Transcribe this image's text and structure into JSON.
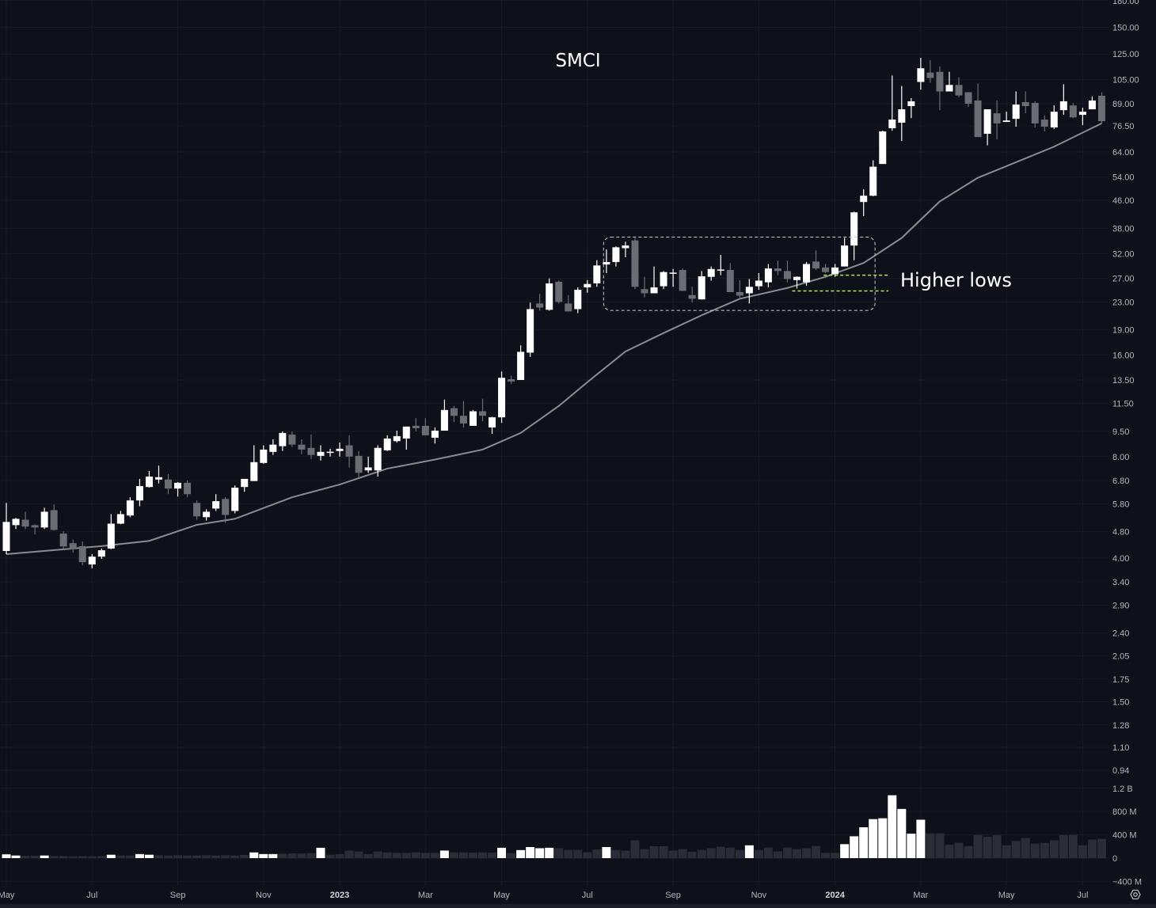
{
  "chart_data": {
    "type": "candlestick",
    "title": "SMCI",
    "price_scale": "log",
    "colors": {
      "background": "#0f111a",
      "up": "#ffffff",
      "down": "#6b6d73",
      "ma": "#8a8c92",
      "volume_normal": "#2a2c36",
      "volume_highlight": "#ffffff",
      "box": "#c8cad0",
      "level_lines": "#b5e853",
      "axis_text": "#b2b5be"
    },
    "y_ticks": [
      {
        "v": 180,
        "label": "180.00"
      },
      {
        "v": 150,
        "label": "150.00"
      },
      {
        "v": 125,
        "label": "125.00"
      },
      {
        "v": 105,
        "label": "105.00"
      },
      {
        "v": 89,
        "label": "89.00"
      },
      {
        "v": 76.5,
        "label": "76.50"
      },
      {
        "v": 64,
        "label": "64.00"
      },
      {
        "v": 54,
        "label": "54.00"
      },
      {
        "v": 46,
        "label": "46.00"
      },
      {
        "v": 38,
        "label": "38.00"
      },
      {
        "v": 32,
        "label": "32.00"
      },
      {
        "v": 27,
        "label": "27.00"
      },
      {
        "v": 23,
        "label": "23.00"
      },
      {
        "v": 19,
        "label": "19.00"
      },
      {
        "v": 16,
        "label": "16.00"
      },
      {
        "v": 13.5,
        "label": "13.50"
      },
      {
        "v": 11.5,
        "label": "11.50"
      },
      {
        "v": 9.5,
        "label": "9.50"
      },
      {
        "v": 8,
        "label": "8.00"
      },
      {
        "v": 6.8,
        "label": "6.80"
      },
      {
        "v": 5.8,
        "label": "5.80"
      },
      {
        "v": 4.8,
        "label": "4.80"
      },
      {
        "v": 4,
        "label": "4.00"
      },
      {
        "v": 3.4,
        "label": "3.40"
      },
      {
        "v": 2.9,
        "label": "2.90"
      },
      {
        "v": 2.4,
        "label": "2.40"
      },
      {
        "v": 2.05,
        "label": "2.05"
      },
      {
        "v": 1.75,
        "label": "1.75"
      },
      {
        "v": 1.5,
        "label": "1.50"
      },
      {
        "v": 1.28,
        "label": "1.28"
      },
      {
        "v": 1.1,
        "label": "1.10"
      },
      {
        "v": 0.94,
        "label": "0.94"
      }
    ],
    "volume_ticks": [
      {
        "v": 1200,
        "label": "1.2 B"
      },
      {
        "v": 800,
        "label": "800 M"
      },
      {
        "v": 400,
        "label": "400 M"
      },
      {
        "v": 0,
        "label": "0"
      },
      {
        "v": -400,
        "label": "−400 M"
      }
    ],
    "x_ticks": [
      {
        "bar": 0,
        "label": "May",
        "bold": false
      },
      {
        "bar": 9,
        "label": "Jul",
        "bold": false
      },
      {
        "bar": 18,
        "label": "Sep",
        "bold": false
      },
      {
        "bar": 27,
        "label": "Nov",
        "bold": false
      },
      {
        "bar": 35,
        "label": "2023",
        "bold": true
      },
      {
        "bar": 44,
        "label": "Mar",
        "bold": false
      },
      {
        "bar": 52,
        "label": "May",
        "bold": false
      },
      {
        "bar": 61,
        "label": "Jul",
        "bold": false
      },
      {
        "bar": 70,
        "label": "Sep",
        "bold": false
      },
      {
        "bar": 79,
        "label": "Nov",
        "bold": false
      },
      {
        "bar": 87,
        "label": "2024",
        "bold": true
      },
      {
        "bar": 96,
        "label": "Mar",
        "bold": false
      },
      {
        "bar": 105,
        "label": "May",
        "bold": false
      },
      {
        "bar": 113,
        "label": "Jul",
        "bold": false
      }
    ],
    "ohlc": [
      [
        4.2,
        5.83,
        4.11,
        5.12
      ],
      [
        5.01,
        5.26,
        4.88,
        5.23
      ],
      [
        5.2,
        5.49,
        4.88,
        4.96
      ],
      [
        5.01,
        5.04,
        4.7,
        4.93
      ],
      [
        4.93,
        5.64,
        4.88,
        5.49
      ],
      [
        5.55,
        5.77,
        4.83,
        4.85
      ],
      [
        4.73,
        4.8,
        4.26,
        4.33
      ],
      [
        4.43,
        4.54,
        4.15,
        4.25
      ],
      [
        4.34,
        4.48,
        3.81,
        3.89
      ],
      [
        3.83,
        4.11,
        3.73,
        4.04
      ],
      [
        4.04,
        4.27,
        3.98,
        4.22
      ],
      [
        4.27,
        5.4,
        4.25,
        5.06
      ],
      [
        5.06,
        5.52,
        5.04,
        5.4
      ],
      [
        5.35,
        6.06,
        5.29,
        5.93
      ],
      [
        5.93,
        6.87,
        5.7,
        6.54
      ],
      [
        6.5,
        7.25,
        6.47,
        6.98
      ],
      [
        6.84,
        7.52,
        6.66,
        6.95
      ],
      [
        6.84,
        7.1,
        6.19,
        6.43
      ],
      [
        6.43,
        6.72,
        6.09,
        6.69
      ],
      [
        6.69,
        6.8,
        6.06,
        6.19
      ],
      [
        5.83,
        5.93,
        5.2,
        5.32
      ],
      [
        5.29,
        5.58,
        5.17,
        5.49
      ],
      [
        5.61,
        6.19,
        5.52,
        5.9
      ],
      [
        5.99,
        6.06,
        5.09,
        5.37
      ],
      [
        5.52,
        6.57,
        5.43,
        6.47
      ],
      [
        6.5,
        6.87,
        6.29,
        6.87
      ],
      [
        6.77,
        8.64,
        6.77,
        7.7
      ],
      [
        7.66,
        8.64,
        7.62,
        8.39
      ],
      [
        8.26,
        9.0,
        8.09,
        8.68
      ],
      [
        8.59,
        9.5,
        8.31,
        9.4
      ],
      [
        9.3,
        9.5,
        8.54,
        8.68
      ],
      [
        8.68,
        9.0,
        8.13,
        8.39
      ],
      [
        8.49,
        9.3,
        7.87,
        8.09
      ],
      [
        8.04,
        8.64,
        7.79,
        8.26
      ],
      [
        8.24,
        8.44,
        8.0,
        8.27
      ],
      [
        8.31,
        8.8,
        8.0,
        8.44
      ],
      [
        8.64,
        9.25,
        7.43,
        8.0
      ],
      [
        8.04,
        8.31,
        6.91,
        7.16
      ],
      [
        7.28,
        8.0,
        7.16,
        7.43
      ],
      [
        7.28,
        8.64,
        6.98,
        8.49
      ],
      [
        8.35,
        9.25,
        8.31,
        9.05
      ],
      [
        8.89,
        9.55,
        8.8,
        9.2
      ],
      [
        9.05,
        9.82,
        8.39,
        9.82
      ],
      [
        9.87,
        10.4,
        9.5,
        9.71
      ],
      [
        9.87,
        10.4,
        9.25,
        9.25
      ],
      [
        9.1,
        9.76,
        8.75,
        9.55
      ],
      [
        9.55,
        11.8,
        9.55,
        11.0
      ],
      [
        11.13,
        11.31,
        10.13,
        10.57
      ],
      [
        10.57,
        11.69,
        9.76,
        10.03
      ],
      [
        9.87,
        11.0,
        9.87,
        10.9
      ],
      [
        10.9,
        11.88,
        10.18,
        10.57
      ],
      [
        9.76,
        10.5,
        9.35,
        10.46
      ],
      [
        10.46,
        14.3,
        10.07,
        13.7
      ],
      [
        13.57,
        13.9,
        13.14,
        13.36
      ],
      [
        13.5,
        17.1,
        13.5,
        16.36
      ],
      [
        16.27,
        22.9,
        15.8,
        21.9
      ],
      [
        22.75,
        24.3,
        21.67,
        22.14
      ],
      [
        21.8,
        27.0,
        21.67,
        26.1
      ],
      [
        26.4,
        26.6,
        22.75,
        23.0
      ],
      [
        22.75,
        24.1,
        21.55,
        21.55
      ],
      [
        21.9,
        25.4,
        21.3,
        25.0
      ],
      [
        25.4,
        26.7,
        24.5,
        26.0
      ],
      [
        26.1,
        30.6,
        25.5,
        29.5
      ],
      [
        29.7,
        32.9,
        28.0,
        30.2
      ],
      [
        30.2,
        33.6,
        29.3,
        33.4
      ],
      [
        33.2,
        34.7,
        31.2,
        33.8
      ],
      [
        35.0,
        35.6,
        25.1,
        25.5
      ],
      [
        25.1,
        27.3,
        23.7,
        24.4
      ],
      [
        24.4,
        29.3,
        24.4,
        25.4
      ],
      [
        25.6,
        28.4,
        25.1,
        28.2
      ],
      [
        27.9,
        28.8,
        25.5,
        28.1
      ],
      [
        28.6,
        28.9,
        24.8,
        24.8
      ],
      [
        24.1,
        25.5,
        22.9,
        23.5
      ],
      [
        23.4,
        28.4,
        23.4,
        27.4
      ],
      [
        27.3,
        29.3,
        26.6,
        28.8
      ],
      [
        28.5,
        31.7,
        27.6,
        28.7
      ],
      [
        28.6,
        30.0,
        24.6,
        24.6
      ],
      [
        24.6,
        26.7,
        23.5,
        24.0
      ],
      [
        24.4,
        26.9,
        22.75,
        25.5
      ],
      [
        25.6,
        28.0,
        25.0,
        26.6
      ],
      [
        26.3,
        29.8,
        25.4,
        28.9
      ],
      [
        28.9,
        30.5,
        27.6,
        28.4
      ],
      [
        28.4,
        30.5,
        26.3,
        26.9
      ],
      [
        26.7,
        27.4,
        25.2,
        27.3
      ],
      [
        26.3,
        30.2,
        25.7,
        29.8
      ],
      [
        30.3,
        32.7,
        28.6,
        28.9
      ],
      [
        29.1,
        29.8,
        28.0,
        28.2
      ],
      [
        27.8,
        29.8,
        27.3,
        29.1
      ],
      [
        29.3,
        35.6,
        29.3,
        33.8
      ],
      [
        33.8,
        42.6,
        30.6,
        42.4
      ],
      [
        45.5,
        49.6,
        41.3,
        47.5
      ],
      [
        47.5,
        60.5,
        47.3,
        57.9
      ],
      [
        59.0,
        74.1,
        59.0,
        73.7
      ],
      [
        75.3,
        107.9,
        74.1,
        79.9
      ],
      [
        78.2,
        100.5,
        69.0,
        85.7
      ],
      [
        87.6,
        92.5,
        80.7,
        90.5
      ],
      [
        103.3,
        121.7,
        98.0,
        113.4
      ],
      [
        110.1,
        119.8,
        102.7,
        106.1
      ],
      [
        110.7,
        114.8,
        85.2,
        96.8
      ],
      [
        96.8,
        110.7,
        96.8,
        101.2
      ],
      [
        101.2,
        106.7,
        93.1,
        94.2
      ],
      [
        96.3,
        96.3,
        87.1,
        89.0
      ],
      [
        91.0,
        102.2,
        70.9,
        70.9
      ],
      [
        72.5,
        85.7,
        67.0,
        85.7
      ],
      [
        83.4,
        91.0,
        69.8,
        77.8
      ],
      [
        78.6,
        84.3,
        78.6,
        79.4
      ],
      [
        80.3,
        96.8,
        76.1,
        88.5
      ],
      [
        90.0,
        96.8,
        83.4,
        87.6
      ],
      [
        89.5,
        90.5,
        75.7,
        77.8
      ],
      [
        79.9,
        82.2,
        73.7,
        76.1
      ],
      [
        75.7,
        88.0,
        74.9,
        84.3
      ],
      [
        85.2,
        101.7,
        82.5,
        90.5
      ],
      [
        88.0,
        89.5,
        80.7,
        81.1
      ],
      [
        82.5,
        86.6,
        76.9,
        84.3
      ],
      [
        85.7,
        93.5,
        85.7,
        91.0
      ],
      [
        94.0,
        96.3,
        77.8,
        79.0
      ]
    ],
    "volume_millions": [
      65,
      45,
      40,
      40,
      45,
      35,
      35,
      30,
      35,
      30,
      35,
      58,
      45,
      45,
      70,
      58,
      50,
      45,
      50,
      45,
      45,
      50,
      45,
      50,
      45,
      55,
      98,
      70,
      70,
      75,
      80,
      80,
      85,
      178,
      58,
      70,
      130,
      115,
      70,
      115,
      98,
      90,
      90,
      98,
      90,
      90,
      130,
      98,
      98,
      95,
      98,
      95,
      178,
      85,
      138,
      190,
      170,
      178,
      170,
      140,
      140,
      100,
      150,
      190,
      140,
      130,
      305,
      155,
      205,
      205,
      130,
      155,
      110,
      140,
      170,
      195,
      180,
      140,
      220,
      140,
      180,
      115,
      180,
      155,
      170,
      210,
      90,
      90,
      240,
      375,
      530,
      670,
      685,
      1080,
      845,
      420,
      660,
      425,
      425,
      230,
      265,
      205,
      400,
      365,
      395,
      220,
      295,
      345,
      250,
      260,
      305,
      395,
      400,
      220,
      320,
      330
    ],
    "volume_highlight_bars": [
      0,
      1,
      4,
      11,
      14,
      15,
      26,
      27,
      28,
      33,
      46,
      52,
      54,
      55,
      56,
      57,
      63,
      78,
      88,
      89,
      90,
      91,
      92,
      93,
      94,
      95,
      96
    ],
    "moving_average": [
      {
        "bar": 0,
        "v": 4.11
      },
      {
        "bar": 10,
        "v": 4.34
      },
      {
        "bar": 15,
        "v": 4.5
      },
      {
        "bar": 20,
        "v": 5.02
      },
      {
        "bar": 24,
        "v": 5.23
      },
      {
        "bar": 30,
        "v": 6.06
      },
      {
        "bar": 35,
        "v": 6.61
      },
      {
        "bar": 40,
        "v": 7.37
      },
      {
        "bar": 45,
        "v": 7.84
      },
      {
        "bar": 50,
        "v": 8.39
      },
      {
        "bar": 54,
        "v": 9.4
      },
      {
        "bar": 58,
        "v": 11.3
      },
      {
        "bar": 61,
        "v": 13.3
      },
      {
        "bar": 65,
        "v": 16.4
      },
      {
        "bar": 69,
        "v": 18.6
      },
      {
        "bar": 73,
        "v": 21.0
      },
      {
        "bar": 77,
        "v": 23.5
      },
      {
        "bar": 82,
        "v": 25.3
      },
      {
        "bar": 86,
        "v": 27.3
      },
      {
        "bar": 90,
        "v": 30.0
      },
      {
        "bar": 94,
        "v": 35.6
      },
      {
        "bar": 98,
        "v": 45.7
      },
      {
        "bar": 102,
        "v": 53.7
      },
      {
        "bar": 106,
        "v": 59.7
      },
      {
        "bar": 110,
        "v": 66.4
      },
      {
        "bar": 115,
        "v": 77.9
      }
    ],
    "annotations": {
      "box": {
        "from_bar": 62.7,
        "to_bar": 91.2,
        "top": 35.8,
        "bottom": 21.7
      },
      "higher_low_lines": [
        {
          "from_bar": 85.8,
          "to_bar": 92.6,
          "v": 27.6
        },
        {
          "from_bar": 82.5,
          "to_bar": 92.6,
          "v": 24.8
        }
      ],
      "label": "Higher lows"
    }
  },
  "settings_icon": "gear-icon"
}
